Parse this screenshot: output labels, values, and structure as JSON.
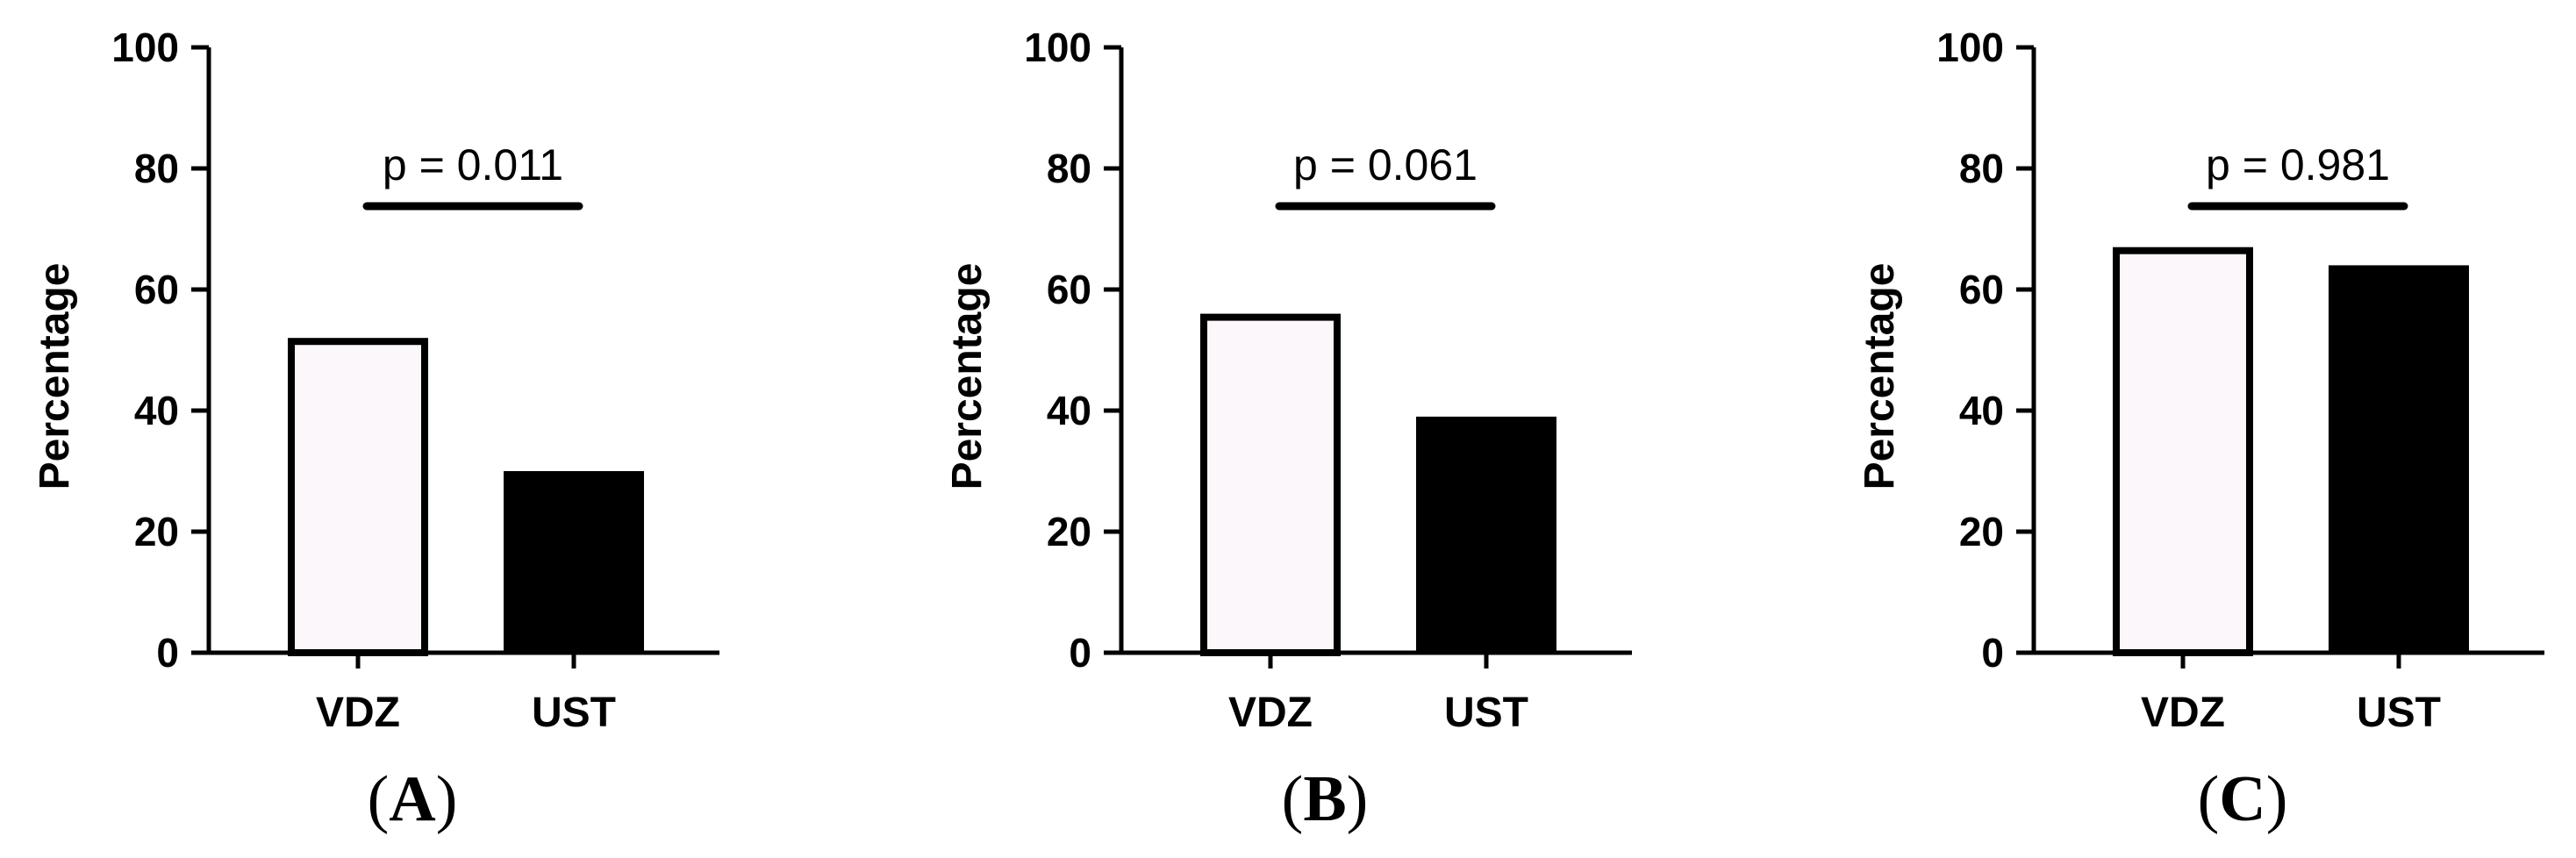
{
  "colors": {
    "axis": "#000000",
    "vdz_fill": "#fbf7fb",
    "ust_fill": "#000000"
  },
  "chart_data": [
    {
      "type": "bar",
      "panel": "(A)",
      "categories": [
        "VDZ",
        "UST"
      ],
      "values": [
        52,
        30
      ],
      "ylabel": "Percentage",
      "ylim": [
        0,
        100
      ],
      "yticks": [
        "0",
        "20",
        "40",
        "60",
        "80",
        "100"
      ],
      "annotation": "p = 0.011",
      "grid": false,
      "legend": "none"
    },
    {
      "type": "bar",
      "panel": "(B)",
      "categories": [
        "VDZ",
        "UST"
      ],
      "values": [
        56,
        39
      ],
      "ylabel": "Percentage",
      "ylim": [
        0,
        100
      ],
      "yticks": [
        "0",
        "20",
        "40",
        "60",
        "80",
        "100"
      ],
      "annotation": "p = 0.061",
      "grid": false,
      "legend": "none"
    },
    {
      "type": "bar",
      "panel": "(C)",
      "categories": [
        "VDZ",
        "UST"
      ],
      "values": [
        67,
        64
      ],
      "ylabel": "Percentage",
      "ylim": [
        0,
        100
      ],
      "yticks": [
        "0",
        "20",
        "40",
        "60",
        "80",
        "100"
      ],
      "annotation": "p = 0.981",
      "grid": false,
      "legend": "none"
    }
  ]
}
